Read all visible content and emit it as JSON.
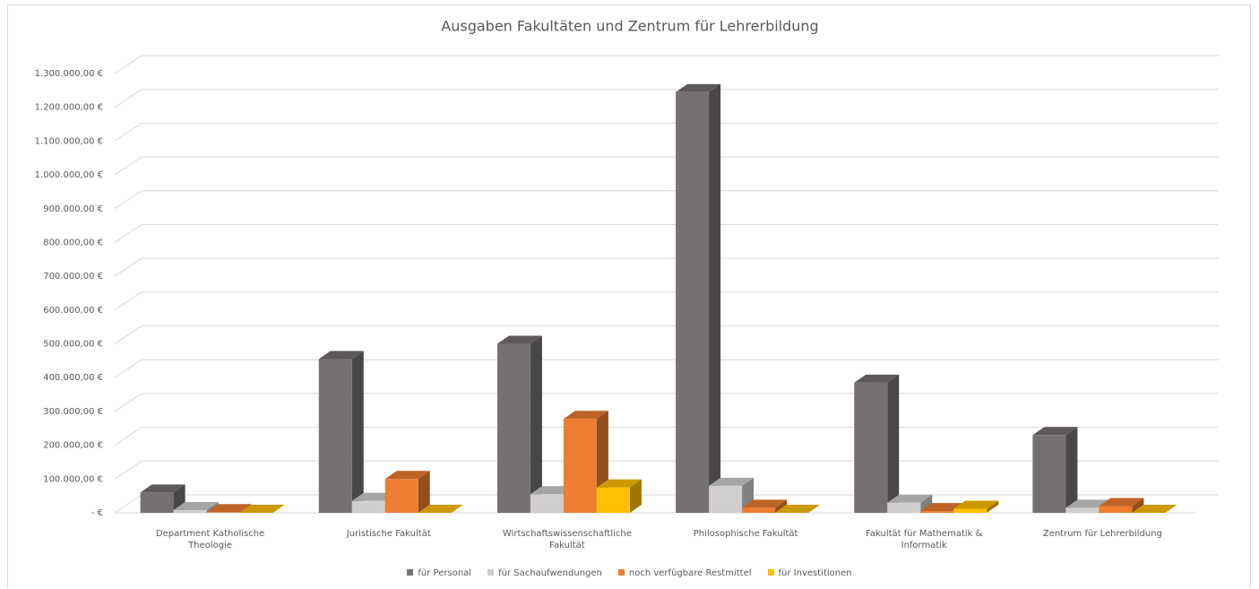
{
  "chart_data": {
    "type": "bar3d",
    "title": "Ausgaben Fakultäten und Zentrum für Lehrerbildung",
    "categories": [
      "Department Katholische Theologie",
      "Juristische Fakultät",
      "Wirtschaftswissenschaftliche Fakultät",
      "Philosophische Fakultät",
      "Fakultät für Mathematik & Informatik",
      "Zentrum für Lehrerbildung"
    ],
    "series": [
      {
        "name": "für Personal",
        "color": "#767171",
        "values": [
          60000,
          455000,
          500000,
          1245000,
          385000,
          230000
        ]
      },
      {
        "name": "für Sachaufwendungen",
        "color": "#d0cece",
        "values": [
          8000,
          35000,
          55000,
          80000,
          30000,
          15000
        ]
      },
      {
        "name": "noch verfügbare Restmittel",
        "color": "#ed7d31",
        "values": [
          2000,
          100000,
          278000,
          15000,
          5000,
          20000
        ]
      },
      {
        "name": "für Investitionen",
        "color": "#ffc000",
        "values": [
          0,
          0,
          75000,
          0,
          12000,
          0
        ]
      }
    ],
    "ylim": [
      0,
      1300000
    ],
    "yticks": [
      {
        "value": 0,
        "label": "-   €"
      },
      {
        "value": 100000,
        "label": "100.000,00 €"
      },
      {
        "value": 200000,
        "label": "200.000,00 €"
      },
      {
        "value": 300000,
        "label": "300.000,00 €"
      },
      {
        "value": 400000,
        "label": "400.000,00 €"
      },
      {
        "value": 500000,
        "label": "500.000,00 €"
      },
      {
        "value": 600000,
        "label": "600.000,00 €"
      },
      {
        "value": 700000,
        "label": "700.000,00 €"
      },
      {
        "value": 800000,
        "label": "800.000,00 €"
      },
      {
        "value": 900000,
        "label": "900.000,00 €"
      },
      {
        "value": 1000000,
        "label": "1.000.000,00 €"
      },
      {
        "value": 1100000,
        "label": "1.100.000,00 €"
      },
      {
        "value": 1200000,
        "label": "1.200.000,00 €"
      },
      {
        "value": 1300000,
        "label": "1.300.000,00 €"
      }
    ],
    "grid": true,
    "legend": "bottom"
  }
}
